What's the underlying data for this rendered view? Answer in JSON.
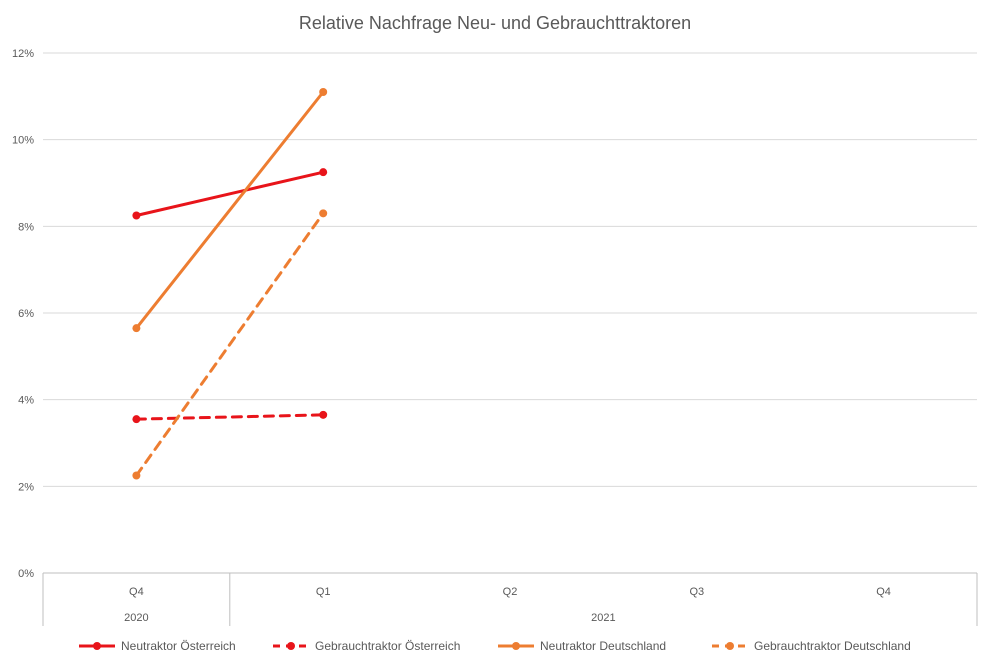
{
  "chart_data": {
    "type": "line",
    "title": "Relative Nachfrage Neu- und Gebrauchttraktoren",
    "xlabel": "",
    "ylabel": "",
    "categories": [
      {
        "quarter": "Q4",
        "year": "2020"
      },
      {
        "quarter": "Q1",
        "year": "2021"
      },
      {
        "quarter": "Q2",
        "year": "2021"
      },
      {
        "quarter": "Q3",
        "year": "2021"
      },
      {
        "quarter": "Q4",
        "year": "2021"
      }
    ],
    "year_groups": [
      {
        "label": "2020",
        "span": 1
      },
      {
        "label": "2021",
        "span": 4
      }
    ],
    "ylim": [
      0,
      12
    ],
    "yticks": [
      0,
      2,
      4,
      6,
      8,
      10,
      12
    ],
    "ytick_labels": [
      "0%",
      "2%",
      "4%",
      "6%",
      "8%",
      "10%",
      "12%"
    ],
    "grid": true,
    "legend_position": "bottom",
    "series": [
      {
        "name": "Neutraktor Österreich",
        "color": "#e8141a",
        "dash": "solid",
        "values": [
          8.25,
          9.25,
          null,
          null,
          null
        ]
      },
      {
        "name": "Gebrauchtraktor Österreich",
        "color": "#e8141a",
        "dash": "dashed",
        "values": [
          3.55,
          3.65,
          null,
          null,
          null
        ]
      },
      {
        "name": "Neutraktor Deutschland",
        "color": "#ed7d31",
        "dash": "solid",
        "values": [
          5.65,
          11.1,
          null,
          null,
          null
        ]
      },
      {
        "name": "Gebrauchtraktor Deutschland",
        "color": "#ed7d31",
        "dash": "dashed",
        "values": [
          2.25,
          8.3,
          null,
          null,
          null
        ]
      }
    ]
  }
}
